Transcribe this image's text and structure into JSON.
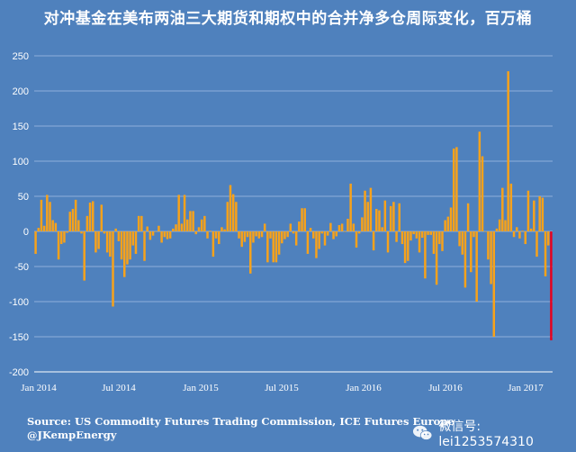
{
  "chart_data": {
    "type": "bar",
    "title": "对冲基金在美布两油三大期货和期权中的合并净多仓周际变化，百万桶",
    "xlabel": "",
    "ylabel": "",
    "ylim": [
      -200,
      250
    ],
    "yticks": [
      250,
      200,
      150,
      100,
      50,
      0,
      -50,
      -100,
      -150,
      -200
    ],
    "xtick_labels": [
      "Jan 2014",
      "Jul 2014",
      "Jan 2015",
      "Jul 2015",
      "Jan 2016",
      "Jul 2016",
      "Jan 2017"
    ],
    "grid": true,
    "bar_color": "#f7a21b",
    "last_bar_color": "#e8001c",
    "values": [
      -32,
      5,
      45,
      8,
      52,
      42,
      16,
      12,
      -40,
      -18,
      -16,
      -2,
      28,
      32,
      45,
      16,
      -3,
      -70,
      22,
      41,
      43,
      -30,
      -25,
      38,
      -3,
      -30,
      -36,
      -107,
      4,
      -14,
      -40,
      -65,
      -47,
      -40,
      -20,
      -32,
      22,
      22,
      -42,
      7,
      -12,
      -6,
      0,
      8,
      -16,
      -8,
      -11,
      -10,
      4,
      10,
      52,
      11,
      52,
      17,
      29,
      29,
      -4,
      6,
      17,
      22,
      -10,
      1,
      -36,
      -10,
      -18,
      6,
      3,
      42,
      66,
      53,
      42,
      -10,
      -22,
      -15,
      -8,
      -60,
      -16,
      -7,
      -10,
      -8,
      11,
      -44,
      -10,
      -44,
      -44,
      -33,
      -17,
      -11,
      -8,
      11,
      -3,
      -20,
      14,
      33,
      33,
      -32,
      5,
      -10,
      -38,
      -25,
      -3,
      -20,
      -6,
      12,
      -11,
      -7,
      9,
      11,
      0,
      18,
      68,
      11,
      -23,
      -3,
      20,
      58,
      42,
      62,
      -27,
      32,
      30,
      6,
      44,
      -30,
      36,
      42,
      -15,
      40,
      -18,
      -45,
      -42,
      -13,
      -4,
      -10,
      -30,
      -9,
      -67,
      -5,
      -5,
      -32,
      -76,
      -18,
      -28,
      16,
      21,
      34,
      118,
      120,
      -21,
      -33,
      -80,
      40,
      -58,
      -8,
      -100,
      142,
      107,
      0,
      -40,
      -75,
      -150,
      4,
      17,
      62,
      16,
      228,
      68,
      -8,
      6,
      -10,
      1,
      -18,
      58,
      4,
      44,
      -36,
      50,
      48,
      -64,
      -20,
      -155
    ]
  },
  "footer": {
    "source_line1": "Source: US Commodity Futures Trading Commission, ICE Futures Europe",
    "source_line2": "@JKempEnergy"
  },
  "watermark": {
    "text": "微信号: lei1253574310",
    "icon": "wechat-icon"
  }
}
